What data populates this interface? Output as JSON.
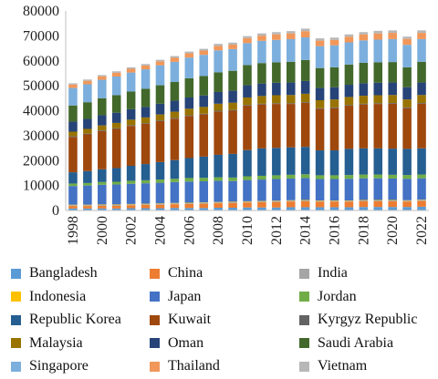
{
  "chart_data": {
    "type": "bar",
    "stacked": true,
    "title": "",
    "xlabel": "",
    "ylabel": "",
    "ylim": [
      0,
      80000
    ],
    "yticks": [
      0,
      10000,
      20000,
      30000,
      40000,
      50000,
      60000,
      70000,
      80000
    ],
    "grid": false,
    "legend_position": "bottom",
    "categories": [
      "1998",
      "1999",
      "2000",
      "2001",
      "2002",
      "2003",
      "2004",
      "2005",
      "2006",
      "2007",
      "2008",
      "2009",
      "2010",
      "2011",
      "2012",
      "2013",
      "2014",
      "2015",
      "2016",
      "2017",
      "2018",
      "2019",
      "2020",
      "2021",
      "2022"
    ],
    "x_tick_labels": [
      "1998",
      "2000",
      "2002",
      "2004",
      "2006",
      "2008",
      "2010",
      "2012",
      "2014",
      "2016",
      "2018",
      "2020",
      "2022"
    ],
    "series": [
      {
        "name": "Bangladesh",
        "color": "#5b9bd5",
        "values": [
          800,
          800,
          800,
          800,
          900,
          900,
          900,
          1000,
          1000,
          1000,
          1100,
          1100,
          1200,
          1200,
          1200,
          1300,
          1300,
          1300,
          1300,
          1300,
          1400,
          1400,
          1400,
          1400,
          1500
        ]
      },
      {
        "name": "China",
        "color": "#ed7d31",
        "values": [
          1000,
          1000,
          1100,
          1100,
          1200,
          1300,
          1400,
          1500,
          1600,
          1700,
          1800,
          1900,
          2000,
          2100,
          2200,
          2300,
          2400,
          2200,
          2200,
          2200,
          2300,
          2300,
          2300,
          2200,
          2300
        ]
      },
      {
        "name": "India",
        "color": "#a5a5a5",
        "values": [
          300,
          300,
          300,
          300,
          300,
          300,
          300,
          300,
          300,
          300,
          300,
          300,
          300,
          300,
          300,
          300,
          300,
          300,
          300,
          300,
          300,
          300,
          300,
          300,
          300
        ]
      },
      {
        "name": "Indonesia",
        "color": "#ffc000",
        "values": [
          200,
          200,
          200,
          200,
          200,
          200,
          200,
          200,
          200,
          200,
          200,
          200,
          200,
          200,
          200,
          200,
          200,
          200,
          200,
          200,
          200,
          200,
          200,
          200,
          200
        ]
      },
      {
        "name": "Japan",
        "color": "#4472c4",
        "values": [
          7500,
          7700,
          7900,
          8000,
          8100,
          8200,
          8300,
          8400,
          8500,
          8500,
          8500,
          8300,
          8500,
          8600,
          8700,
          8700,
          8800,
          8600,
          8600,
          8700,
          8700,
          8700,
          8600,
          8600,
          8600
        ]
      },
      {
        "name": "Jordan",
        "color": "#70ad47",
        "values": [
          1000,
          1000,
          1100,
          1100,
          1200,
          1200,
          1300,
          1300,
          1400,
          1400,
          1400,
          1400,
          1500,
          1500,
          1500,
          1500,
          1500,
          1500,
          1500,
          1500,
          1500,
          1500,
          1500,
          1500,
          1500
        ]
      },
      {
        "name": "Republic Korea",
        "color": "#255e91",
        "values": [
          4500,
          4800,
          5100,
          5500,
          6000,
          6500,
          7000,
          7500,
          8000,
          8500,
          9000,
          9500,
          10500,
          11000,
          11000,
          11000,
          11000,
          10000,
          10000,
          10500,
          10500,
          10500,
          10500,
          10500,
          10500
        ]
      },
      {
        "name": "Kuwait",
        "color": "#9e480e",
        "values": [
          14200,
          14700,
          15300,
          15700,
          16000,
          16100,
          16400,
          16600,
          16900,
          16900,
          17400,
          17300,
          17800,
          17600,
          17600,
          17400,
          17600,
          16600,
          16900,
          17300,
          17600,
          17800,
          18000,
          16300,
          17900
        ]
      },
      {
        "name": "Kyrgyz Republic",
        "color": "#636363",
        "values": [
          300,
          300,
          300,
          300,
          300,
          300,
          300,
          300,
          300,
          300,
          300,
          300,
          300,
          300,
          300,
          300,
          300,
          300,
          300,
          300,
          300,
          300,
          300,
          300,
          300
        ]
      },
      {
        "name": "Malaysia",
        "color": "#997300",
        "values": [
          1800,
          1900,
          2000,
          2100,
          2200,
          2300,
          2400,
          2500,
          2600,
          2700,
          2800,
          2900,
          3000,
          3100,
          3200,
          3300,
          3400,
          3200,
          3200,
          3200,
          3200,
          3200,
          3200,
          3200,
          3200
        ]
      },
      {
        "name": "Oman",
        "color": "#264478",
        "values": [
          4000,
          4000,
          4100,
          4100,
          4200,
          4200,
          4300,
          4400,
          4500,
          4600,
          4700,
          4800,
          4900,
          5000,
          5000,
          5000,
          5100,
          4900,
          4900,
          4900,
          5000,
          5000,
          5000,
          4900,
          5000
        ]
      },
      {
        "name": "Saudi Arabia",
        "color": "#43682b",
        "values": [
          6500,
          6700,
          6800,
          7000,
          7100,
          7300,
          7400,
          7500,
          7700,
          7800,
          7900,
          8000,
          8100,
          8200,
          8200,
          8300,
          8400,
          8000,
          8000,
          8100,
          8200,
          8200,
          8200,
          8000,
          8300
        ]
      },
      {
        "name": "Singapore",
        "color": "#7cafdd",
        "values": [
          7000,
          7200,
          7400,
          7500,
          7600,
          7800,
          8000,
          8100,
          8300,
          8500,
          8800,
          8700,
          8800,
          8900,
          9000,
          9100,
          9100,
          8800,
          8800,
          8900,
          9000,
          9100,
          9200,
          9000,
          9100
        ]
      },
      {
        "name": "Thailand",
        "color": "#f1975a",
        "values": [
          1400,
          1400,
          1400,
          1500,
          1500,
          1500,
          1600,
          1600,
          1700,
          1700,
          1800,
          1800,
          2000,
          2100,
          2200,
          2300,
          2500,
          2200,
          2200,
          2300,
          2400,
          2500,
          2500,
          2400,
          2500
        ]
      },
      {
        "name": "Vietnam",
        "color": "#b7b7b7",
        "values": [
          500,
          500,
          500,
          600,
          600,
          600,
          600,
          700,
          700,
          700,
          800,
          800,
          800,
          900,
          900,
          900,
          1000,
          900,
          900,
          900,
          900,
          1000,
          1000,
          900,
          1000
        ]
      }
    ]
  }
}
